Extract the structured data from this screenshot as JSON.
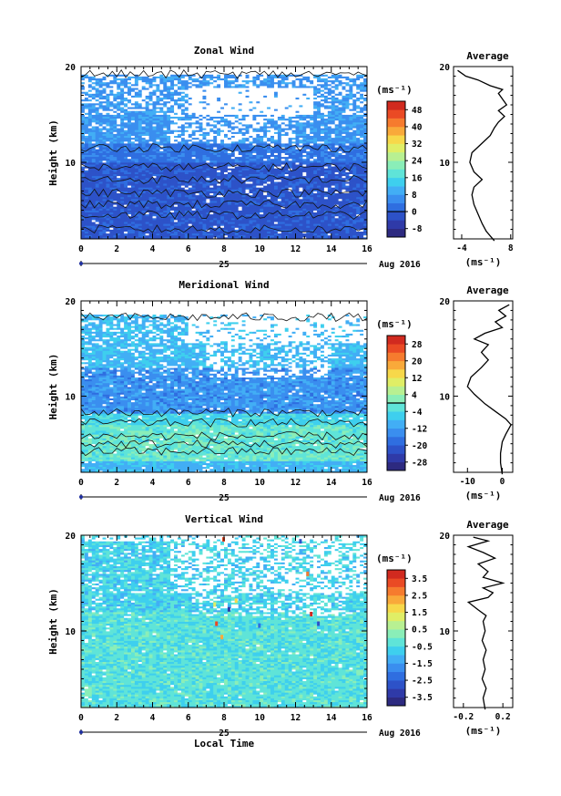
{
  "chart_data": [
    {
      "type": "heatmap",
      "title": "Zonal Wind",
      "xlabel": "",
      "ylabel": "Height (km)",
      "xlim": [
        0,
        16
      ],
      "ylim": [
        2,
        20
      ],
      "x_ticks": [
        "0",
        "2",
        "4",
        "6",
        "8",
        "10",
        "12",
        "14",
        "16"
      ],
      "y_ticks": [
        "10",
        "20"
      ],
      "date_day": "25",
      "date_label": "Aug 2016",
      "colorbar": {
        "unit": "(ms⁻¹)",
        "ticks": [
          "48",
          "40",
          "32",
          "24",
          "16",
          "8",
          "0",
          "-8"
        ],
        "range": [
          -12,
          52
        ],
        "marker": 0
      },
      "profile": {
        "title": "Average",
        "xlabel": "(ms⁻¹)",
        "x_ticks": [
          "-4",
          "8"
        ],
        "xlim": [
          -6,
          8.5
        ],
        "y_ticks": [
          "10",
          "20"
        ],
        "points": [
          [
            4,
            1.8
          ],
          [
            2,
            2.8
          ],
          [
            1,
            3.6
          ],
          [
            0,
            4.6
          ],
          [
            -1,
            5.6
          ],
          [
            -1.5,
            6.6
          ],
          [
            -1,
            7.4
          ],
          [
            1,
            8.2
          ],
          [
            -1,
            9
          ],
          [
            -2,
            10
          ],
          [
            -1.5,
            11
          ],
          [
            1,
            12
          ],
          [
            3,
            12.8
          ],
          [
            4,
            13.6
          ],
          [
            5,
            14.2
          ],
          [
            6.5,
            14.8
          ],
          [
            5,
            15.4
          ],
          [
            7,
            16
          ],
          [
            6,
            16.6
          ],
          [
            5,
            17.2
          ],
          [
            6,
            17.6
          ],
          [
            3,
            18
          ],
          [
            0,
            18.6
          ],
          [
            -3,
            19
          ],
          [
            -5,
            19.6
          ]
        ]
      }
    },
    {
      "type": "heatmap",
      "title": "Meridional Wind",
      "xlabel": "",
      "ylabel": "Height (km)",
      "xlim": [
        0,
        16
      ],
      "ylim": [
        2,
        20
      ],
      "x_ticks": [
        "0",
        "2",
        "4",
        "6",
        "8",
        "10",
        "12",
        "14",
        "16"
      ],
      "y_ticks": [
        "10",
        "20"
      ],
      "date_day": "25",
      "date_label": "Aug 2016",
      "colorbar": {
        "unit": "(ms⁻¹)",
        "ticks": [
          "28",
          "20",
          "12",
          "4",
          "-4",
          "-12",
          "-20",
          "-28"
        ],
        "range": [
          -32,
          32
        ],
        "marker": 0
      },
      "profile": {
        "title": "Average",
        "xlabel": "(ms⁻¹)",
        "x_ticks": [
          "-10",
          "0"
        ],
        "xlim": [
          -14,
          3
        ],
        "y_ticks": [
          "10",
          "20"
        ],
        "points": [
          [
            0,
            1.8
          ],
          [
            -0.5,
            3
          ],
          [
            -0.5,
            4
          ],
          [
            0,
            5.2
          ],
          [
            1,
            6
          ],
          [
            2.5,
            7
          ],
          [
            1,
            7.6
          ],
          [
            -2,
            8.4
          ],
          [
            -5,
            9.2
          ],
          [
            -8,
            10.2
          ],
          [
            -10,
            11
          ],
          [
            -9,
            12
          ],
          [
            -6,
            13
          ],
          [
            -4,
            13.8
          ],
          [
            -6,
            14.6
          ],
          [
            -4,
            15.4
          ],
          [
            -8,
            16
          ],
          [
            -5,
            16.6
          ],
          [
            0,
            17.2
          ],
          [
            -2,
            17.8
          ],
          [
            1,
            18.4
          ],
          [
            -1,
            19
          ],
          [
            2,
            19.6
          ]
        ]
      }
    },
    {
      "type": "heatmap",
      "title": "Vertical Wind",
      "xlabel": "Local Time",
      "ylabel": "Height (km)",
      "xlim": [
        0,
        16
      ],
      "ylim": [
        2,
        20
      ],
      "x_ticks": [
        "0",
        "2",
        "4",
        "6",
        "8",
        "10",
        "12",
        "14",
        "16"
      ],
      "y_ticks": [
        "10",
        "20"
      ],
      "date_day": "25",
      "date_label": "Aug 2016",
      "colorbar": {
        "unit": "(ms⁻¹)",
        "ticks": [
          "3.5",
          "2.5",
          "1.5",
          "0.5",
          "-0.5",
          "-1.5",
          "-2.5",
          "-3.5"
        ],
        "range": [
          -4,
          4
        ],
        "marker": null
      },
      "profile": {
        "title": "Average",
        "xlabel": "(ms⁻¹)",
        "x_ticks": [
          "-0.2",
          "0.2"
        ],
        "xlim": [
          -0.3,
          0.3
        ],
        "y_ticks": [
          "10",
          "20"
        ],
        "points": [
          [
            0.02,
            1.8
          ],
          [
            0,
            3
          ],
          [
            0.03,
            4
          ],
          [
            -0.01,
            5
          ],
          [
            0.02,
            6
          ],
          [
            0,
            7
          ],
          [
            0.03,
            8
          ],
          [
            -0.01,
            9
          ],
          [
            0.02,
            10
          ],
          [
            0,
            11
          ],
          [
            0.03,
            11.6
          ],
          [
            -0.05,
            12.2
          ],
          [
            -0.15,
            13
          ],
          [
            0.05,
            13.5
          ],
          [
            0.1,
            14
          ],
          [
            0,
            14.5
          ],
          [
            0.2,
            15
          ],
          [
            0,
            15.6
          ],
          [
            0.05,
            16.2
          ],
          [
            -0.05,
            17
          ],
          [
            0.12,
            17.6
          ],
          [
            0,
            18.2
          ],
          [
            -0.15,
            18.8
          ],
          [
            0.05,
            19.4
          ],
          [
            -0.1,
            19.8
          ]
        ]
      }
    }
  ]
}
